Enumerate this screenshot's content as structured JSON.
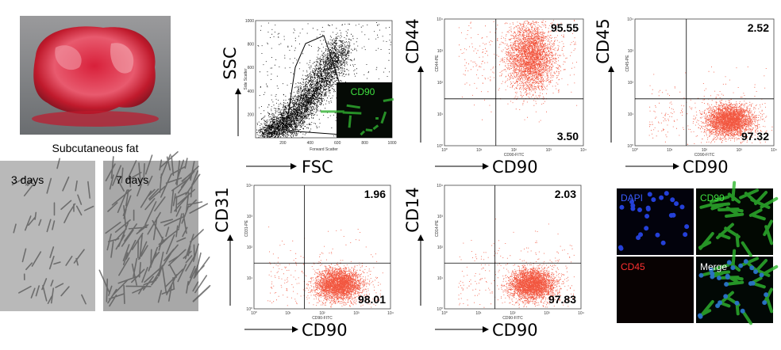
{
  "tissue": {
    "label": "Subcutaneous fat"
  },
  "cultures": [
    {
      "label": "3 days"
    },
    {
      "label": "7 days"
    }
  ],
  "gating": {
    "y_label": "SSC",
    "x_label": "FSC",
    "plot_x_title": "Forward Scatter",
    "plot_y_title": "Side Scatter",
    "inset_label": "CD90",
    "x_ticks": [
      "200",
      "400",
      "600",
      "800",
      "1000"
    ],
    "y_ticks": [
      "200",
      "400",
      "600",
      "800",
      "1000"
    ]
  },
  "log_ticks": [
    "10⁰",
    "10¹",
    "10²",
    "10³",
    "10⁴"
  ],
  "plots": [
    {
      "marker": "CD44",
      "x_label": "CD90",
      "x_title": "CD90-FITC",
      "y_title": "CD44-PE",
      "upper_right": "95.55",
      "lower_right": "3.50"
    },
    {
      "marker": "CD45",
      "x_label": "CD90",
      "x_title": "CD90-FITC",
      "y_title": "CD45-PE",
      "upper_right": "2.52",
      "lower_right": "97.32"
    },
    {
      "marker": "CD31",
      "x_label": "CD90",
      "x_title": "CD90-FITC",
      "y_title": "CD31-PE",
      "upper_right": "1.96",
      "lower_right": "98.01"
    },
    {
      "marker": "CD14",
      "x_label": "CD90",
      "x_title": "CD90-FITC",
      "y_title": "CD14-PE",
      "upper_right": "2.03",
      "lower_right": "97.83"
    }
  ],
  "staining": {
    "panels": [
      "DAPI",
      "CD90",
      "CD45",
      "Merge"
    ]
  }
}
